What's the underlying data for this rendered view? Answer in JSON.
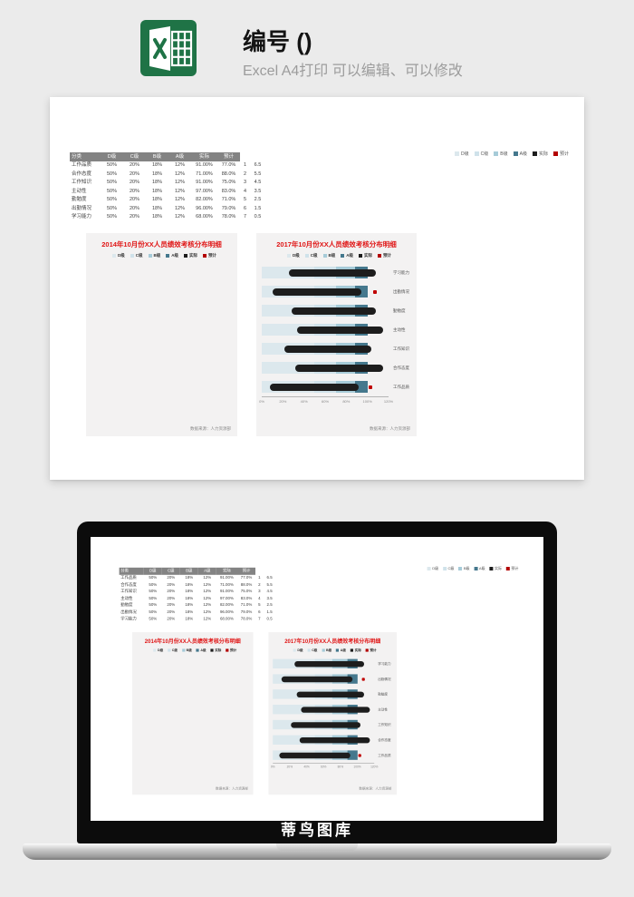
{
  "header": {
    "title": "编号 ()",
    "subtitle": "Excel A4打印 可以编辑、可以修改",
    "excel_icon_color": "#1f7346"
  },
  "legend": {
    "items": [
      {
        "label": "D级",
        "color": "#dce8ed"
      },
      {
        "label": "C级",
        "color": "#cfe2ea"
      },
      {
        "label": "B级",
        "color": "#a6cbd8"
      },
      {
        "label": "A级",
        "color": "#45788d"
      },
      {
        "label": "实际",
        "color": "#1d1d1d"
      },
      {
        "label": "预计",
        "color": "#b30000"
      }
    ]
  },
  "table": {
    "headers": [
      "分类",
      "D级",
      "C级",
      "B级",
      "A级",
      "实际",
      "预计",
      "",
      ""
    ],
    "rows": [
      [
        "工作品质",
        "50%",
        "20%",
        "18%",
        "12%",
        "91.00%",
        "77.0%",
        "1",
        "6.5"
      ],
      [
        "合作态度",
        "50%",
        "20%",
        "18%",
        "12%",
        "71.00%",
        "88.0%",
        "2",
        "5.5"
      ],
      [
        "工作知识",
        "50%",
        "20%",
        "18%",
        "12%",
        "91.00%",
        "75.0%",
        "3",
        "4.5"
      ],
      [
        "主动性",
        "50%",
        "20%",
        "18%",
        "12%",
        "97.00%",
        "83.0%",
        "4",
        "3.5"
      ],
      [
        "勤勉度",
        "50%",
        "20%",
        "18%",
        "12%",
        "82.00%",
        "71.0%",
        "5",
        "2.5"
      ],
      [
        "出勤情况",
        "50%",
        "20%",
        "18%",
        "12%",
        "96.00%",
        "79.0%",
        "6",
        "1.5"
      ],
      [
        "学习能力",
        "50%",
        "20%",
        "18%",
        "12%",
        "68.00%",
        "78.0%",
        "7",
        "0.5"
      ]
    ]
  },
  "chart_data": [
    {
      "type": "bar",
      "subtype": "bullet-horizontal",
      "title": "2014年10月份XX人员绩效考核分布明细",
      "legend": [
        "D级",
        "C级",
        "B级",
        "A级",
        "实际",
        "预计"
      ],
      "series": [],
      "plot_area_empty": true,
      "source": "数据来源：人力资源部"
    },
    {
      "type": "bar",
      "subtype": "bullet-horizontal",
      "title": "2017年10月份XX人员绩效考核分布明细",
      "legend": [
        "D级",
        "C级",
        "B级",
        "A级",
        "实际",
        "预计"
      ],
      "xlim": [
        0,
        120
      ],
      "x_ticks": [
        "0%",
        "20%",
        "40%",
        "60%",
        "80%",
        "100%",
        "120%"
      ],
      "background_segments": [
        {
          "name": "D级",
          "pct": 50,
          "color": "#dce8ed"
        },
        {
          "name": "C级",
          "pct": 20,
          "color": "#cfe2ea"
        },
        {
          "name": "B级",
          "pct": 18,
          "color": "#a6cbd8"
        },
        {
          "name": "A级",
          "pct": 12,
          "color": "#45788d"
        }
      ],
      "rows": [
        {
          "label": "学习能力",
          "actual": 68,
          "target": 78,
          "bar_start": 26,
          "bar_end": 108,
          "marker": null
        },
        {
          "label": "出勤情况",
          "actual": 96,
          "target": 79,
          "bar_start": 10,
          "bar_end": 94,
          "marker": 105
        },
        {
          "label": "勤勉度",
          "actual": 82,
          "target": 71,
          "bar_start": 28,
          "bar_end": 108,
          "marker": null
        },
        {
          "label": "主动性",
          "actual": 97,
          "target": 83,
          "bar_start": 33,
          "bar_end": 115,
          "marker": null
        },
        {
          "label": "工作知识",
          "actual": 91,
          "target": 75,
          "bar_start": 21,
          "bar_end": 104,
          "marker": null
        },
        {
          "label": "合作态度",
          "actual": 71,
          "target": 88,
          "bar_start": 32,
          "bar_end": 115,
          "marker": null
        },
        {
          "label": "工作品质",
          "actual": 91,
          "target": 77,
          "bar_start": 8,
          "bar_end": 92,
          "marker": 101
        }
      ],
      "source": "数据来源：人力资源部"
    }
  ],
  "laptop": {
    "watermark": "蒂鸟图库"
  }
}
